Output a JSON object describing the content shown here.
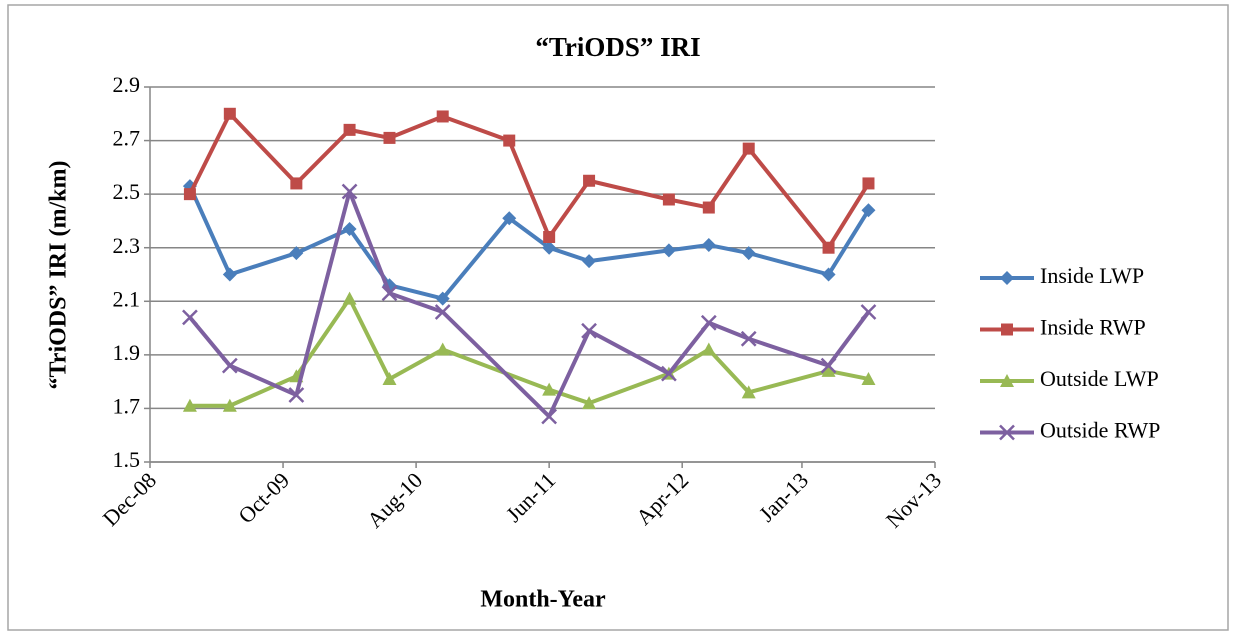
{
  "chart_data": {
    "type": "line",
    "title": "“TriODS” IRI",
    "x_label": "Month-Year",
    "y_label": "“TriODS” IRI (m/km)",
    "xlim": [
      "Dec-08",
      "Nov-13"
    ],
    "xticks": [
      "Dec-08",
      "Oct-09",
      "Aug-10",
      "Jun-11",
      "Apr-12",
      "Jan-13",
      "Nov-13"
    ],
    "ylim": [
      1.5,
      2.9
    ],
    "yticks": [
      1.5,
      1.7,
      1.9,
      2.1,
      2.3,
      2.5,
      2.7,
      2.9
    ],
    "grid": true,
    "legend": "right",
    "series": [
      {
        "name": "Inside LWP",
        "color": "#4a7ebb",
        "marker": "diamond",
        "x": [
          "Mar-09",
          "Jun-09",
          "Nov-09",
          "Mar-10",
          "Jun-10",
          "Oct-10",
          "Mar-11",
          "Jun-11",
          "Sep-11",
          "Mar-12",
          "Jun-12",
          "Sep-12",
          "Mar-13",
          "Jun-13"
        ],
        "values": [
          2.53,
          2.2,
          2.28,
          2.37,
          2.16,
          2.11,
          2.41,
          2.3,
          2.25,
          2.29,
          2.31,
          2.28,
          2.2,
          2.44
        ]
      },
      {
        "name": "Inside RWP",
        "color": "#be4b48",
        "marker": "square",
        "x": [
          "Mar-09",
          "Jun-09",
          "Nov-09",
          "Mar-10",
          "Jun-10",
          "Oct-10",
          "Mar-11",
          "Jun-11",
          "Sep-11",
          "Mar-12",
          "Jun-12",
          "Sep-12",
          "Mar-13",
          "Jun-13"
        ],
        "values": [
          2.5,
          2.8,
          2.54,
          2.74,
          2.71,
          2.79,
          2.7,
          2.34,
          2.55,
          2.48,
          2.45,
          2.67,
          2.3,
          2.54
        ]
      },
      {
        "name": "Outside LWP",
        "color": "#98b954",
        "marker": "triangle",
        "x": [
          "Mar-09",
          "Jun-09",
          "Nov-09",
          "Mar-10",
          "Jun-10",
          "Oct-10",
          "Jun-11",
          "Sep-11",
          "Mar-12",
          "Jun-12",
          "Sep-12",
          "Mar-13",
          "Jun-13"
        ],
        "values": [
          1.71,
          1.71,
          1.82,
          2.11,
          1.81,
          1.92,
          1.77,
          1.72,
          1.83,
          1.92,
          1.76,
          1.84,
          1.81
        ]
      },
      {
        "name": "Outside RWP",
        "color": "#7d60a0",
        "marker": "x",
        "x": [
          "Mar-09",
          "Jun-09",
          "Nov-09",
          "Mar-10",
          "Jun-10",
          "Oct-10",
          "Jun-11",
          "Sep-11",
          "Mar-12",
          "Jun-12",
          "Sep-12",
          "Mar-13",
          "Jun-13"
        ],
        "values": [
          2.04,
          1.86,
          1.75,
          2.51,
          2.13,
          2.06,
          1.67,
          1.99,
          1.83,
          2.02,
          1.96,
          1.86,
          2.06
        ]
      }
    ]
  }
}
